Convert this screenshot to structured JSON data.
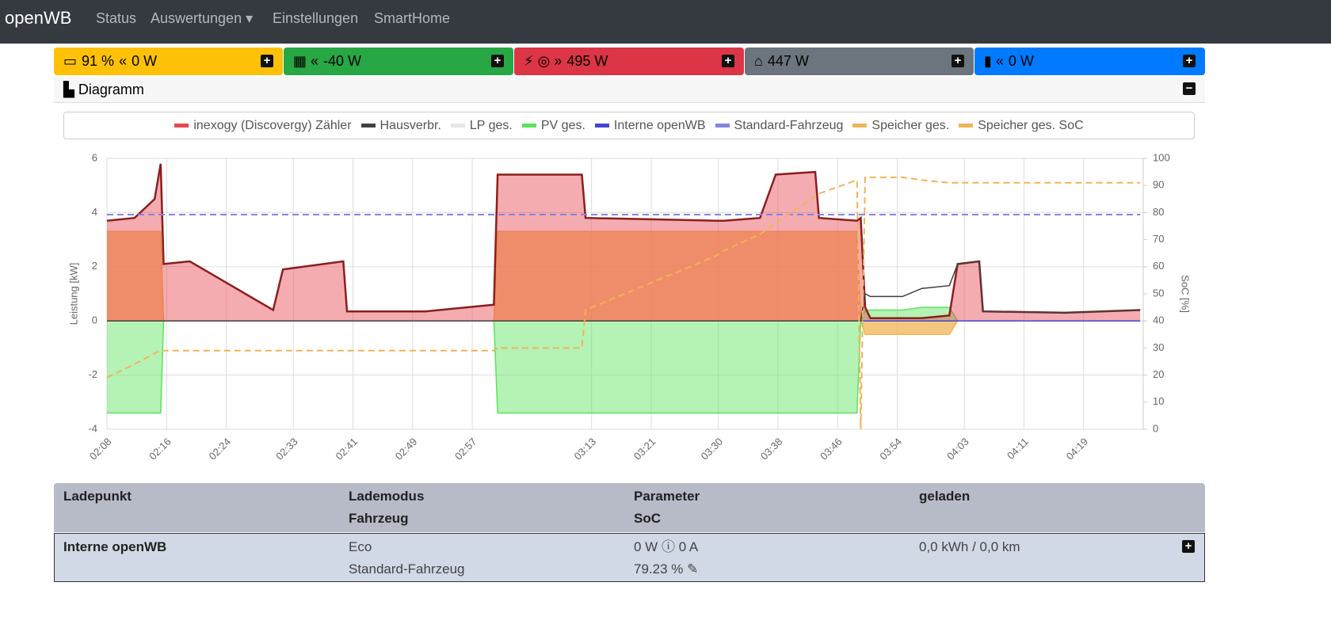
{
  "navbar": {
    "brand": "openWB",
    "items": [
      "Status",
      "Auswertungen",
      "Einstellungen",
      "SmartHome"
    ]
  },
  "cards": [
    {
      "texts": [
        "91 %",
        "0 W"
      ]
    },
    {
      "texts": [
        "-40 W"
      ]
    },
    {
      "texts": [
        "495 W"
      ]
    },
    {
      "texts": [
        "447 W"
      ]
    },
    {
      "texts": [
        "0 W"
      ]
    }
  ],
  "diagram": {
    "title": "Diagramm"
  },
  "chart_data": {
    "type": "line",
    "y_label": "Leistung [kW]",
    "y2_label": "SoC [%]",
    "x": [
      128,
      131.7,
      134.4,
      135.2,
      135.6,
      139.1,
      150.3,
      151.6,
      159.7,
      160.2,
      170.7,
      179.9,
      180.4,
      191.7,
      192.2,
      209.7,
      210.8,
      215.6,
      217.7,
      223.0,
      223.5,
      228.6,
      229.1,
      229.7,
      230.4,
      234.7,
      237.3,
      241.0,
      242.1,
      245.0,
      245.5,
      256.5,
      266.6
    ],
    "xlim": [
      128,
      267
    ],
    "xticks": [
      {
        "value": 128,
        "label": "02:08"
      },
      {
        "value": 136,
        "label": "02:16"
      },
      {
        "value": 144,
        "label": "02:24"
      },
      {
        "value": 153,
        "label": "02:33"
      },
      {
        "value": 161,
        "label": "02:41"
      },
      {
        "value": 169,
        "label": "02:49"
      },
      {
        "value": 177,
        "label": "02:57"
      },
      {
        "value": 193,
        "label": "03:13"
      },
      {
        "value": 201,
        "label": "03:21"
      },
      {
        "value": 210,
        "label": "03:30"
      },
      {
        "value": 218,
        "label": "03:38"
      },
      {
        "value": 226,
        "label": "03:46"
      },
      {
        "value": 234,
        "label": "03:54"
      },
      {
        "value": 243,
        "label": "04:03"
      },
      {
        "value": 251,
        "label": "04:11"
      },
      {
        "value": 259,
        "label": "04:19"
      }
    ],
    "ylim": [
      -4,
      6
    ],
    "yticks": [
      -4,
      -2,
      0,
      2,
      4,
      6
    ],
    "y2lim": [
      0,
      100
    ],
    "y2ticks": [
      0,
      10,
      20,
      30,
      40,
      50,
      60,
      70,
      80,
      90,
      100
    ],
    "grid": true,
    "series": [
      {
        "name": "inexogy (Discovergy) Zähler",
        "color": "#e8474f",
        "line_color": "#8b1e1e",
        "fill": true,
        "values": [
          3.7,
          3.8,
          4.5,
          5.8,
          2.1,
          2.2,
          0.4,
          1.9,
          2.2,
          0.35,
          0.35,
          0.6,
          5.4,
          5.4,
          3.8,
          3.7,
          3.7,
          3.8,
          5.4,
          5.5,
          3.8,
          3.7,
          3.8,
          0.5,
          0.1,
          0.1,
          0.1,
          0.2,
          2.1,
          2.2,
          0.35,
          0.3,
          0.4
        ]
      },
      {
        "name": "Hausverbr.",
        "color": "#404040",
        "values": [
          0,
          0,
          0,
          0,
          0,
          0,
          0,
          0,
          0,
          0,
          0,
          0,
          0,
          0,
          0,
          0,
          0,
          0,
          0,
          0,
          0,
          0,
          0,
          1.0,
          0.9,
          0.9,
          1.2,
          1.3,
          2.1,
          2.2,
          0.35,
          0.3,
          0.4
        ]
      },
      {
        "name": "LP ges.",
        "color": "#e6e6e6",
        "values": [
          0,
          0,
          0,
          0,
          0,
          0,
          0,
          0,
          0,
          0,
          0,
          0,
          0,
          0,
          0,
          0,
          0,
          0,
          0,
          0,
          0,
          0,
          0,
          0,
          0,
          0,
          0,
          0,
          0,
          0,
          0,
          0,
          0
        ]
      },
      {
        "name": "PV ges.",
        "color": "#5be35b",
        "fill": true,
        "values": [
          -3.4,
          -3.4,
          -3.4,
          -3.4,
          0,
          0,
          0,
          0,
          0,
          0,
          0,
          0,
          -3.4,
          -3.4,
          -3.4,
          -3.4,
          -3.4,
          -3.4,
          -3.4,
          -3.4,
          -3.4,
          -3.4,
          0,
          0.4,
          0.4,
          0.4,
          0.5,
          0.5,
          0,
          0,
          0,
          0,
          0
        ]
      },
      {
        "name": "Interne openWB",
        "color": "#4646d2",
        "values": [
          0,
          0,
          0,
          0,
          0,
          0,
          0,
          0,
          0,
          0,
          0,
          0,
          0,
          0,
          0,
          0,
          0,
          0,
          0,
          0,
          0,
          0,
          0,
          0,
          0,
          0,
          0,
          0,
          0,
          0,
          0,
          0,
          0
        ]
      },
      {
        "name": "Standard-Fahrzeug",
        "color": "#8585e0",
        "dashed": true,
        "axis": "y2",
        "values": [
          79.23,
          79.23,
          79.23,
          79.23,
          79.23,
          79.23,
          79.23,
          79.23,
          79.23,
          79.23,
          79.23,
          79.23,
          79.23,
          79.23,
          79.23,
          79.23,
          79.23,
          79.23,
          79.23,
          79.23,
          79.23,
          79.23,
          79.23,
          79.23,
          79.23,
          79.23,
          79.23,
          79.23,
          79.23,
          79.23,
          79.23,
          79.23,
          79.23
        ]
      },
      {
        "name": "Speicher ges.",
        "color": "#f0b456",
        "fill": true,
        "values": [
          3.3,
          3.3,
          3.3,
          3.3,
          0,
          0,
          0,
          0,
          0,
          0,
          0,
          0,
          3.3,
          3.3,
          3.3,
          3.3,
          3.3,
          3.3,
          3.3,
          3.3,
          3.3,
          3.3,
          0,
          -0.5,
          -0.5,
          -0.5,
          -0.5,
          -0.5,
          0,
          0,
          0,
          0,
          0
        ]
      },
      {
        "name": "Speicher ges. SoC",
        "color": "#f0b456",
        "dashed": true,
        "axis": "y2",
        "values": [
          19,
          24,
          28,
          29,
          29,
          29,
          29,
          29,
          29,
          29,
          29,
          29,
          30,
          30,
          44,
          64,
          66,
          72,
          76,
          86,
          87,
          92,
          0,
          93,
          93,
          93,
          92,
          91,
          91,
          91,
          91,
          91,
          91
        ]
      }
    ]
  },
  "table": {
    "header": [
      [
        "Ladepunkt"
      ],
      [
        "Lademodus",
        "Fahrzeug"
      ],
      [
        "Parameter",
        "SoC"
      ],
      [
        "geladen"
      ]
    ],
    "rows": [
      [
        [
          "Interne openWB"
        ],
        [
          "Eco",
          "Standard-Fahrzeug"
        ],
        [
          "0 W",
          "0 A",
          "79.23 %"
        ],
        [
          "0,0 kWh / 0,0 km"
        ]
      ]
    ]
  }
}
